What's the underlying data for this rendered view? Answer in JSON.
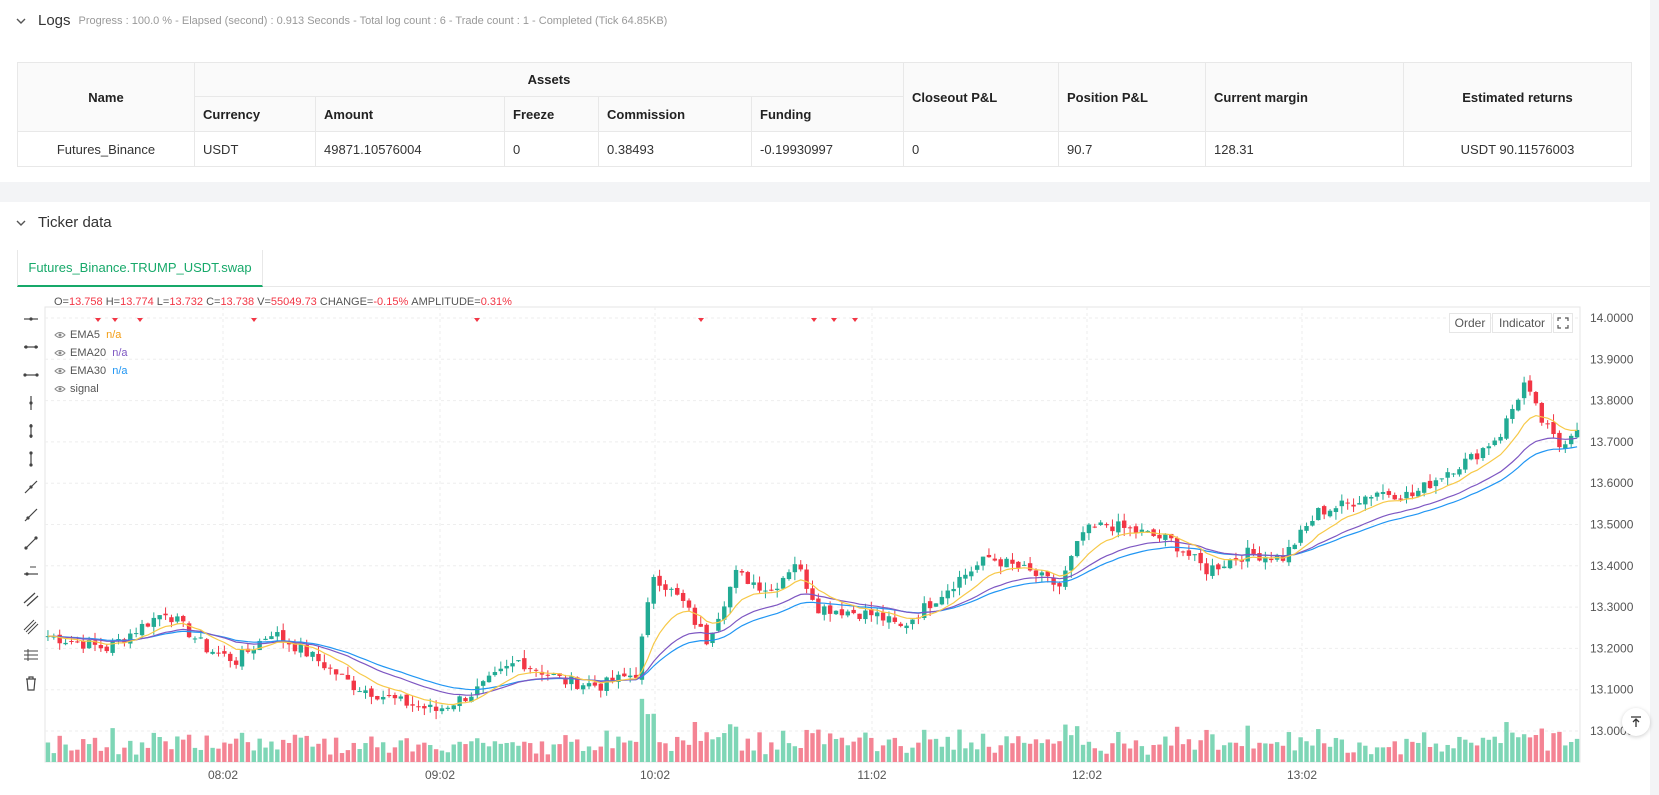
{
  "logs": {
    "title": "Logs",
    "progress": "Progress : 100.0 % - Elapsed (second) : 0.913  Seconds - Total log count : 6 - Trade count : 1 - Completed (Tick 64.85KB)"
  },
  "table": {
    "group_header": "Assets",
    "headers": {
      "name": "Name",
      "currency": "Currency",
      "amount": "Amount",
      "freeze": "Freeze",
      "commission": "Commission",
      "funding": "Funding",
      "closeout": "Closeout P&L",
      "position": "Position P&L",
      "margin": "Current margin",
      "returns": "Estimated returns"
    },
    "row": {
      "name": "Futures_Binance",
      "currency": "USDT",
      "amount": "49871.10576004",
      "freeze": "0",
      "commission": "0.38493",
      "funding": "-0.19930997",
      "closeout": "0",
      "position": "90.7",
      "margin": "128.31",
      "returns": "USDT 90.11576003"
    }
  },
  "ticker": {
    "title": "Ticker data",
    "tab_label": "Futures_Binance.TRUMP_USDT.swap",
    "order_button": "Order",
    "indicator_button": "Indicator"
  },
  "legend": {
    "o_label": "O=",
    "o_value": "13.758",
    "h_label": "H=",
    "h_value": "13.774",
    "l_label": "L=",
    "l_value": "13.732",
    "c_label": "C=",
    "c_value": "13.738",
    "v_label": "V=",
    "v_value": "55049.73",
    "change_label": "CHANGE=",
    "change_value": "-0.15%",
    "amp_label": "AMPLITUDE=",
    "amp_value": "0.31%",
    "ema5": "EMA5",
    "ema20": "EMA20",
    "ema30": "EMA30",
    "signal": "signal",
    "na": "n/a"
  },
  "colors": {
    "up": "#22ab94",
    "down": "#f23645",
    "ema5": "#f7c948",
    "ema20": "#7e57c2",
    "ema30": "#2196f3",
    "vol_up": "#7ed6b6",
    "vol_down": "#f48494",
    "accent": "#17a96a"
  },
  "chart_data": {
    "type": "candlestick",
    "symbol": "Futures_Binance.TRUMP_USDT.swap",
    "x_ticks": [
      "08:02",
      "09:02",
      "10:02",
      "11:02",
      "12:02",
      "13:02"
    ],
    "y_ticks": [
      "14.0000",
      "13.9000",
      "13.8000",
      "13.7000",
      "13.6000",
      "13.5000",
      "13.4000",
      "13.3000",
      "13.2000",
      "13.1000",
      "13.0000"
    ],
    "ylim": [
      12.97,
      14.02
    ],
    "grid": true,
    "series": [
      {
        "name": "EMA5"
      },
      {
        "name": "EMA20"
      },
      {
        "name": "EMA30"
      },
      {
        "name": "signal"
      }
    ],
    "close_anchors": [
      [
        0,
        13.23
      ],
      [
        10,
        13.2
      ],
      [
        20,
        13.29
      ],
      [
        27,
        13.2
      ],
      [
        32,
        13.17
      ],
      [
        38,
        13.24
      ],
      [
        45,
        13.18
      ],
      [
        52,
        13.11
      ],
      [
        60,
        13.07
      ],
      [
        66,
        13.05
      ],
      [
        72,
        13.09
      ],
      [
        80,
        13.17
      ],
      [
        88,
        13.12
      ],
      [
        94,
        13.11
      ],
      [
        100,
        13.14
      ],
      [
        103,
        13.38
      ],
      [
        108,
        13.31
      ],
      [
        112,
        13.22
      ],
      [
        117,
        13.38
      ],
      [
        123,
        13.34
      ],
      [
        127,
        13.41
      ],
      [
        131,
        13.3
      ],
      [
        136,
        13.29
      ],
      [
        141,
        13.28
      ],
      [
        145,
        13.25
      ],
      [
        150,
        13.31
      ],
      [
        155,
        13.37
      ],
      [
        160,
        13.42
      ],
      [
        166,
        13.39
      ],
      [
        172,
        13.35
      ],
      [
        176,
        13.48
      ],
      [
        180,
        13.5
      ],
      [
        186,
        13.48
      ],
      [
        191,
        13.46
      ],
      [
        197,
        13.39
      ],
      [
        204,
        13.43
      ],
      [
        210,
        13.42
      ],
      [
        216,
        13.53
      ],
      [
        221,
        13.55
      ],
      [
        226,
        13.58
      ],
      [
        232,
        13.57
      ],
      [
        238,
        13.63
      ],
      [
        242,
        13.66
      ],
      [
        247,
        13.72
      ],
      [
        251,
        13.84
      ],
      [
        254,
        13.75
      ],
      [
        257,
        13.69
      ],
      [
        260,
        13.74
      ]
    ],
    "last_candle": {
      "open": 13.758,
      "high": 13.774,
      "low": 13.732,
      "close": 13.738,
      "volume": 55049.73,
      "change": "-0.15%",
      "amplitude": "0.31%"
    }
  }
}
